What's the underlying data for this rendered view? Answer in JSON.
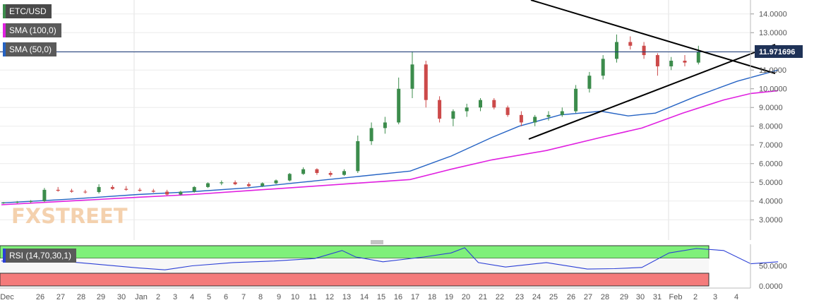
{
  "legend": {
    "symbol": "ETC/USD",
    "sma100": "SMA (100,0)",
    "sma50": "SMA (50,0)",
    "rsi": "RSI (14,70,30,1)"
  },
  "current_price": "11.971696",
  "watermark": "FXSTREET",
  "colors": {
    "up": "#3c8c4c",
    "down": "#cc4a4a",
    "sma50": "#2563c4",
    "sma100": "#e020e0",
    "rsi_line": "#2b3fd6",
    "rsi_overbought": "#7ff07a",
    "rsi_oversold": "#f47b7b",
    "price_line": "#1a3a7a",
    "trendline": "#000000"
  },
  "chart_data": {
    "type": "candlestick",
    "price_axis": {
      "ticks": [
        "14.0000",
        "13.0000",
        "12.0000",
        "11.0000",
        "10.0000",
        "9.0000",
        "8.0000",
        "7.0000",
        "6.0000",
        "5.0000",
        "4.0000",
        "3.0000"
      ],
      "range": [
        2.0,
        15.0
      ]
    },
    "rsi_axis": {
      "ticks": [
        "50.0000",
        "0.0000"
      ],
      "range": [
        0,
        100
      ],
      "overbought": 70,
      "oversold": 30
    },
    "x_axis": {
      "labels": [
        "Dec",
        "26",
        "27",
        "28",
        "29",
        "30",
        "Jan",
        "2",
        "3",
        "4",
        "5",
        "6",
        "7",
        "8",
        "9",
        "10",
        "11",
        "12",
        "13",
        "14",
        "15",
        "16",
        "17",
        "18",
        "19",
        "20",
        "21",
        "22",
        "23",
        "24",
        "25",
        "26",
        "27",
        "28",
        "29",
        "30",
        "31",
        "Feb",
        "2",
        "3",
        "4"
      ]
    },
    "series": [
      {
        "name": "SMA (50,0)",
        "points": [
          [
            0,
            3.9
          ],
          [
            5,
            4.1
          ],
          [
            10,
            4.35
          ],
          [
            14,
            4.5
          ],
          [
            18,
            4.7
          ],
          [
            22,
            5.0
          ],
          [
            26,
            5.3
          ],
          [
            30,
            5.6
          ],
          [
            33,
            6.4
          ],
          [
            36,
            7.4
          ],
          [
            38,
            8.0
          ],
          [
            41,
            8.6
          ],
          [
            44,
            8.8
          ],
          [
            46,
            8.55
          ],
          [
            48,
            8.7
          ],
          [
            51,
            9.6
          ],
          [
            54,
            10.4
          ],
          [
            57,
            11.0
          ]
        ]
      },
      {
        "name": "SMA (100,0)",
        "points": [
          [
            0,
            3.8
          ],
          [
            5,
            4.0
          ],
          [
            10,
            4.2
          ],
          [
            14,
            4.35
          ],
          [
            18,
            4.55
          ],
          [
            22,
            4.75
          ],
          [
            26,
            4.95
          ],
          [
            30,
            5.15
          ],
          [
            33,
            5.7
          ],
          [
            36,
            6.2
          ],
          [
            40,
            6.7
          ],
          [
            44,
            7.4
          ],
          [
            47,
            7.9
          ],
          [
            50,
            8.7
          ],
          [
            53,
            9.4
          ],
          [
            55,
            9.75
          ],
          [
            57,
            9.9
          ]
        ]
      },
      {
        "name": "RSI (14,70,30,1)",
        "points": [
          [
            0,
            62
          ],
          [
            5,
            60
          ],
          [
            10,
            45
          ],
          [
            12,
            40
          ],
          [
            14,
            50
          ],
          [
            17,
            58
          ],
          [
            20,
            62
          ],
          [
            23,
            68
          ],
          [
            25,
            88
          ],
          [
            26,
            72
          ],
          [
            28,
            60
          ],
          [
            31,
            72
          ],
          [
            33,
            82
          ],
          [
            34,
            95
          ],
          [
            35,
            58
          ],
          [
            37,
            47
          ],
          [
            40,
            58
          ],
          [
            43,
            42
          ],
          [
            45,
            43
          ],
          [
            47,
            46
          ],
          [
            49,
            82
          ],
          [
            51,
            93
          ],
          [
            53,
            88
          ],
          [
            55,
            55
          ],
          [
            57,
            60
          ]
        ]
      }
    ],
    "candles": [
      [
        0,
        3.9,
        3.95,
        3.85,
        3.92
      ],
      [
        1,
        3.92,
        4.0,
        3.88,
        3.95
      ],
      [
        2,
        3.95,
        4.05,
        3.9,
        4.0
      ],
      [
        3,
        4.0,
        4.7,
        3.95,
        4.6
      ],
      [
        4,
        4.6,
        4.75,
        4.5,
        4.55
      ],
      [
        5,
        4.55,
        4.65,
        4.45,
        4.5
      ],
      [
        6,
        4.5,
        4.6,
        4.4,
        4.48
      ],
      [
        7,
        4.48,
        4.9,
        4.4,
        4.75
      ],
      [
        8,
        4.75,
        4.85,
        4.6,
        4.65
      ],
      [
        9,
        4.65,
        4.8,
        4.55,
        4.6
      ],
      [
        10,
        4.6,
        4.7,
        4.5,
        4.55
      ],
      [
        11,
        4.55,
        4.65,
        4.45,
        4.5
      ],
      [
        12,
        4.5,
        4.6,
        4.3,
        4.35
      ],
      [
        13,
        4.35,
        4.55,
        4.3,
        4.5
      ],
      [
        14,
        4.5,
        4.8,
        4.45,
        4.75
      ],
      [
        15,
        4.75,
        5.0,
        4.7,
        4.95
      ],
      [
        16,
        4.95,
        5.1,
        4.85,
        5.0
      ],
      [
        17,
        5.0,
        5.1,
        4.85,
        4.9
      ],
      [
        18,
        4.9,
        5.0,
        4.75,
        4.8
      ],
      [
        19,
        4.8,
        5.0,
        4.75,
        4.95
      ],
      [
        20,
        4.95,
        5.15,
        4.9,
        5.1
      ],
      [
        21,
        5.1,
        5.5,
        5.05,
        5.45
      ],
      [
        22,
        5.45,
        5.8,
        5.4,
        5.7
      ],
      [
        23,
        5.7,
        5.75,
        5.4,
        5.5
      ],
      [
        24,
        5.5,
        5.6,
        5.3,
        5.4
      ],
      [
        25,
        5.4,
        5.7,
        5.35,
        5.6
      ],
      [
        26,
        5.6,
        7.5,
        5.5,
        7.2
      ],
      [
        27,
        7.2,
        8.2,
        7.0,
        7.9
      ],
      [
        28,
        7.9,
        8.5,
        7.6,
        8.2
      ],
      [
        29,
        8.2,
        10.6,
        8.1,
        10.0
      ],
      [
        30,
        10.0,
        12.0,
        9.5,
        11.3
      ],
      [
        31,
        11.3,
        11.5,
        9.0,
        9.4
      ],
      [
        32,
        9.4,
        9.6,
        8.2,
        8.4
      ],
      [
        33,
        8.4,
        8.9,
        8.0,
        8.8
      ],
      [
        34,
        8.8,
        9.2,
        8.5,
        9.0
      ],
      [
        35,
        9.0,
        9.5,
        8.8,
        9.4
      ],
      [
        36,
        9.4,
        9.5,
        8.9,
        9.0
      ],
      [
        37,
        9.0,
        9.1,
        8.5,
        8.6
      ],
      [
        38,
        8.6,
        8.8,
        8.0,
        8.2
      ],
      [
        39,
        8.2,
        8.6,
        8.0,
        8.5
      ],
      [
        40,
        8.5,
        8.8,
        8.3,
        8.6
      ],
      [
        41,
        8.6,
        9.0,
        8.5,
        8.8
      ],
      [
        42,
        8.8,
        10.2,
        8.7,
        10.0
      ],
      [
        43,
        10.0,
        10.9,
        9.8,
        10.7
      ],
      [
        44,
        10.7,
        11.8,
        10.5,
        11.6
      ],
      [
        45,
        11.6,
        12.9,
        11.4,
        12.5
      ],
      [
        46,
        12.5,
        12.8,
        12.1,
        12.3
      ],
      [
        47,
        12.3,
        12.5,
        11.6,
        11.8
      ],
      [
        48,
        11.8,
        11.9,
        10.7,
        11.2
      ],
      [
        49,
        11.2,
        11.7,
        11.0,
        11.5
      ],
      [
        50,
        11.5,
        11.8,
        11.2,
        11.4
      ],
      [
        51,
        11.4,
        12.3,
        11.3,
        11.97
      ]
    ]
  }
}
